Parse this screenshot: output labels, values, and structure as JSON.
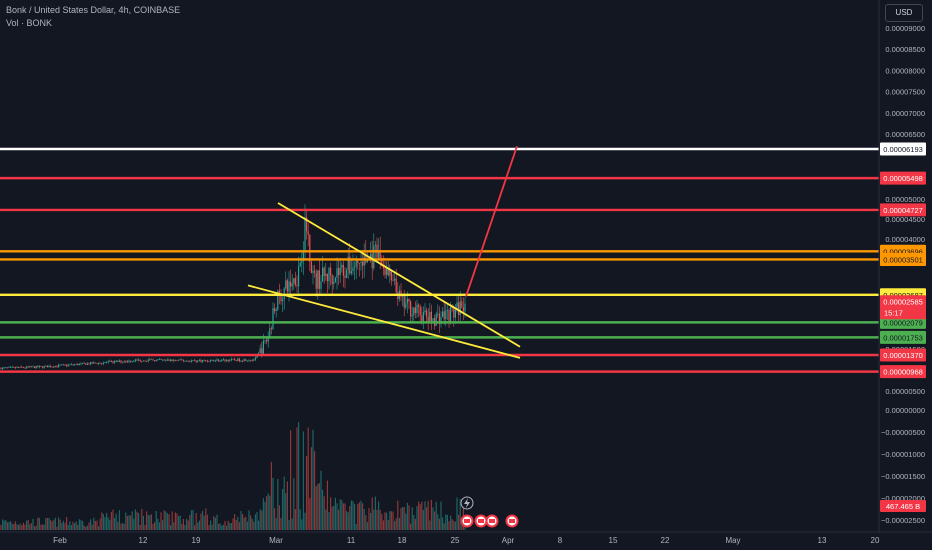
{
  "header": {
    "title": "Bonk / United States Dollar, 4h, COINBASE",
    "volume_label": "Vol · BONK"
  },
  "currency_button": "USD",
  "countdown": "15:17",
  "volume_badge": "467.465 B",
  "colors": {
    "background": "#131722",
    "white_level": "#ffffff",
    "red_level": "#f23645",
    "orange_level": "#ff9800",
    "yellow_level": "#ffeb3b",
    "green_level": "#4caf50",
    "up_candle": "#26a69a",
    "down_candle": "#ef5350"
  },
  "chart_data": {
    "type": "candlestick",
    "symbol": "Bonk / United States Dollar",
    "interval": "4h",
    "exchange": "COINBASE",
    "y_axis_ticks": [
      "0.00009000",
      "0.00008500",
      "0.00008000",
      "0.00007500",
      "0.00007000",
      "0.00006500",
      "0.00005000",
      "0.00004500",
      "0.00004000",
      "0.00003500",
      "0.00002500",
      "0.00001500",
      "0.00000500",
      "0.00000000",
      "-0.00000500",
      "-0.00001000",
      "-0.00001500",
      "-0.00002000",
      "-0.00002500"
    ],
    "x_axis_ticks": [
      "Feb",
      "12",
      "19",
      "Mar",
      "11",
      "18",
      "25",
      "Apr",
      "8",
      "15",
      "22",
      "May",
      "13",
      "20"
    ],
    "levels": [
      {
        "value": "0.00006193",
        "color": "white"
      },
      {
        "value": "0.00005498",
        "color": "red"
      },
      {
        "value": "0.00004727",
        "color": "red"
      },
      {
        "value": "0.00003696",
        "color": "orange"
      },
      {
        "value": "0.00003501",
        "color": "orange"
      },
      {
        "value": "0.00002687",
        "color": "yellow"
      },
      {
        "value": "0.00002079",
        "color": "green"
      },
      {
        "value": "0.00001753",
        "color": "green"
      },
      {
        "value": "0.00001370",
        "color": "red"
      },
      {
        "value": "0.00000968",
        "color": "red"
      }
    ],
    "last_price": "0.00002585",
    "price_path": [
      [
        "Feb 1",
        1.05e-05
      ],
      [
        "Feb 8",
        1.08e-05
      ],
      [
        "Feb 12",
        1.25e-05
      ],
      [
        "Feb 19",
        1.23e-05
      ],
      [
        "Feb 26",
        1.26e-05
      ],
      [
        "Feb 28",
        1.75e-05
      ],
      [
        "Mar 1",
        2.55e-05
      ],
      [
        "Mar 4",
        3.15e-05
      ],
      [
        "Mar 5",
        4.4e-05
      ],
      [
        "Mar 6",
        3e-05
      ],
      [
        "Mar 10",
        3.3e-05
      ],
      [
        "Mar 14",
        3.6e-05
      ],
      [
        "Mar 18",
        2.5e-05
      ],
      [
        "Mar 22",
        2.15e-05
      ],
      [
        "Mar 25",
        2.3e-05
      ],
      [
        "Mar 27",
        2.58e-05
      ]
    ],
    "trend_lines": [
      {
        "color": "yellow",
        "from": [
          "Feb 27",
          4.9e-05
        ],
        "to": [
          "Apr 1",
          1.55e-05
        ]
      },
      {
        "color": "yellow",
        "from": [
          "Feb 25",
          2.9e-05
        ],
        "to": [
          "Apr 1",
          1.3e-05
        ]
      },
      {
        "color": "red",
        "from": [
          "Mar 27",
          2.65e-05
        ],
        "to": [
          "Mar 31",
          6.25e-05
        ]
      }
    ]
  }
}
